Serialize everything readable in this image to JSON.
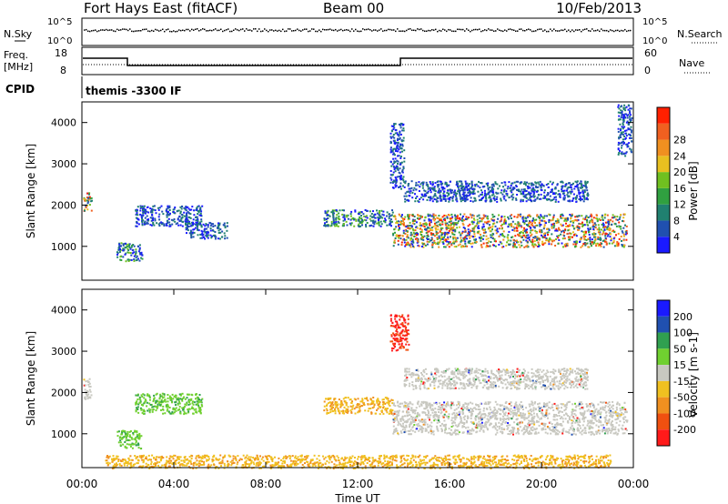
{
  "header": {
    "station": "Fort Hays East (fitACF)",
    "beam": "Beam 00",
    "date": "10/Feb/2013"
  },
  "strips": {
    "nsky_label": "N.Sky",
    "nsky_ticks": [
      "10^5",
      "10^0"
    ],
    "nsearch_label": "N.Search",
    "nsearch_ticks": [
      "10^5",
      "10^0"
    ],
    "freq_label": "Freq.",
    "freq_unit": "[MHz]",
    "freq_ticks": [
      "18",
      "8"
    ],
    "nave_label": "Nave",
    "nave_ticks": [
      "60",
      "0"
    ],
    "cpid_label": "CPID",
    "cpid_value": "themis -3300 IF"
  },
  "chart_data": [
    {
      "type": "heatmap",
      "name": "power",
      "ylabel": "Slant Range [km]",
      "xlabel": "",
      "ylim": [
        180,
        4500
      ],
      "xlim": [
        0,
        24
      ],
      "yticks": [
        "1000",
        "2000",
        "3000",
        "4000"
      ],
      "colorbar_label": "Power [dB]",
      "colorbar_ticks": [
        "4",
        "8",
        "12",
        "16",
        "20",
        "24",
        "28"
      ],
      "colorbar_colors": [
        "#1a1aff",
        "#2050b0",
        "#208070",
        "#30a040",
        "#70c020",
        "#e8c020",
        "#f09020",
        "#f06020",
        "#ff2000"
      ],
      "regions": [
        {
          "t": [
            0.05,
            0.4
          ],
          "r": [
            1850,
            2350
          ],
          "level": "high"
        },
        {
          "t": [
            1.5,
            2.6
          ],
          "r": [
            650,
            1100
          ],
          "level": "mid"
        },
        {
          "t": [
            2.3,
            5.2
          ],
          "r": [
            1500,
            2000
          ],
          "level": "low"
        },
        {
          "t": [
            4.5,
            6.3
          ],
          "r": [
            1200,
            1600
          ],
          "level": "low"
        },
        {
          "t": [
            10.5,
            13.5
          ],
          "r": [
            1500,
            1900
          ],
          "level": "mid"
        },
        {
          "t": [
            13.5,
            23.7
          ],
          "r": [
            1000,
            1800
          ],
          "level": "high"
        },
        {
          "t": [
            14,
            22
          ],
          "r": [
            2100,
            2600
          ],
          "level": "low"
        },
        {
          "t": [
            13.4,
            14.0
          ],
          "r": [
            2400,
            4000
          ],
          "level": "low"
        },
        {
          "t": [
            23.3,
            23.9
          ],
          "r": [
            3200,
            4450
          ],
          "level": "low"
        }
      ]
    },
    {
      "type": "heatmap",
      "name": "velocity",
      "ylabel": "Slant Range [km]",
      "xlabel": "Time UT",
      "ylim": [
        180,
        4500
      ],
      "xlim": [
        0,
        24
      ],
      "yticks": [
        "1000",
        "2000",
        "3000",
        "4000"
      ],
      "xticks": [
        "00:00",
        "04:00",
        "08:00",
        "12:00",
        "16:00",
        "20:00",
        "00:00"
      ],
      "colorbar_label": "Velocity [m s-1]",
      "colorbar_ticks": [
        "200",
        "100",
        "50",
        "15",
        "-15",
        "-50",
        "-100",
        "-200"
      ],
      "colorbar_colors": [
        "#1a1aff",
        "#2050b0",
        "#30a050",
        "#70d030",
        "#c8c8c0",
        "#f0c020",
        "#f09020",
        "#f05010",
        "#ff1a1a"
      ],
      "regions": [
        {
          "t": [
            0.05,
            0.4
          ],
          "r": [
            1850,
            2350
          ],
          "level": "grey"
        },
        {
          "t": [
            1.5,
            2.6
          ],
          "r": [
            650,
            1100
          ],
          "level": "green"
        },
        {
          "t": [
            2.3,
            5.2
          ],
          "r": [
            1500,
            2000
          ],
          "level": "green"
        },
        {
          "t": [
            10.5,
            13.5
          ],
          "r": [
            1500,
            1900
          ],
          "level": "yellow"
        },
        {
          "t": [
            13.5,
            23.7
          ],
          "r": [
            1000,
            1800
          ],
          "level": "grey"
        },
        {
          "t": [
            14,
            22
          ],
          "r": [
            2100,
            2600
          ],
          "level": "grey"
        },
        {
          "t": [
            13.4,
            14.2
          ],
          "r": [
            3000,
            3900
          ],
          "level": "red"
        },
        {
          "t": [
            1,
            23
          ],
          "r": [
            180,
            500
          ],
          "level": "yellow"
        }
      ]
    }
  ]
}
